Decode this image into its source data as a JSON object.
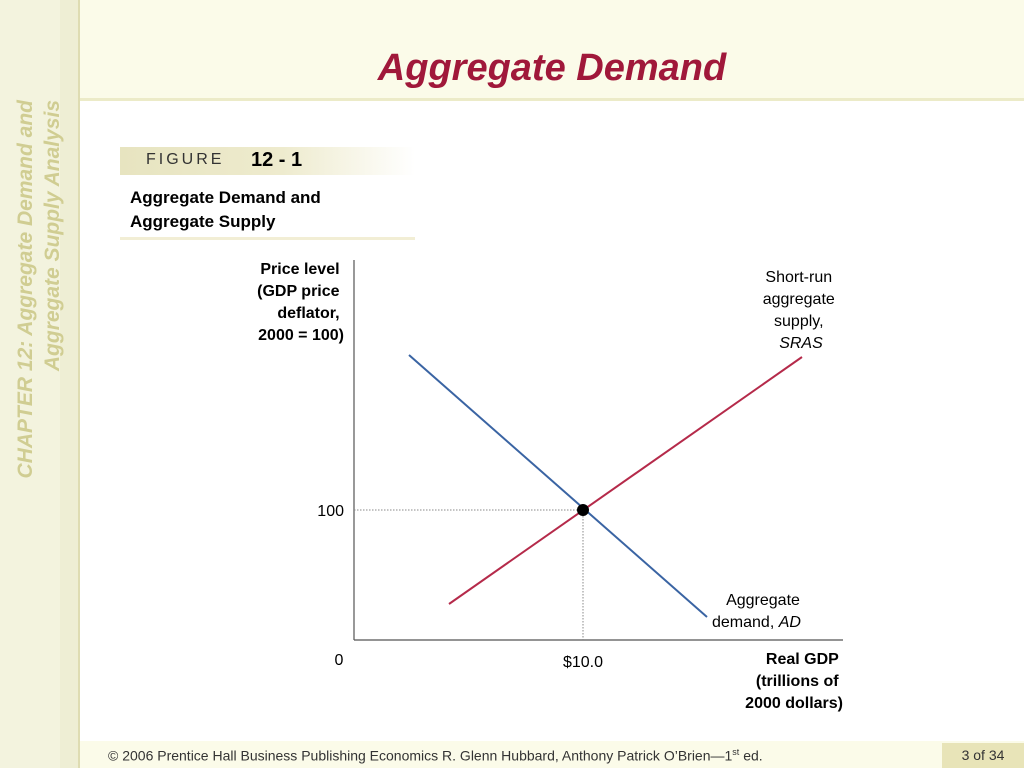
{
  "slide": {
    "title": "Aggregate Demand",
    "chapter_line1": "CHAPTER 12:  Aggregate Demand and",
    "chapter_line2": "Aggregate Supply Analysis"
  },
  "figure": {
    "label": "FIGURE",
    "number": "12 - 1",
    "caption_line1": "Aggregate Demand and",
    "caption_line2": "Aggregate Supply"
  },
  "chart_data": {
    "type": "line",
    "title": "Aggregate Demand and Aggregate Supply",
    "ylabel_lines": [
      "Price level",
      "(GDP price",
      "deflator,",
      "2000 = 100)"
    ],
    "xlabel_lines": [
      "Real GDP",
      "(trillions of",
      "2000 dollars)"
    ],
    "origin_label": "0",
    "x_tick_label": "$10.0",
    "y_tick_label": "100",
    "equilibrium": {
      "x": 10.0,
      "y": 100
    },
    "series": [
      {
        "name": "AD",
        "label_lines": [
          "Aggregate",
          "demand, "
        ],
        "label_italic": "AD",
        "color": "#3a64a3",
        "slope": "downward"
      },
      {
        "name": "SRAS",
        "label_lines": [
          "Short-run",
          "aggregate",
          "supply,"
        ],
        "label_italic": "SRAS",
        "color": "#b52a4a",
        "slope": "upward"
      }
    ],
    "grid": false,
    "guide_lines": "dotted lines from equilibrium to both axes"
  },
  "footer": {
    "text_before_sup": "© 2006 Prentice Hall Business Publishing   Economics  R. Glenn Hubbard, Anthony Patrick O’Brien—1",
    "sup": "st",
    "text_after_sup": " ed.",
    "page": "3 of 34"
  },
  "colors": {
    "title": "#a0183a",
    "band": "#fbfbe9",
    "sidebar_text": "#d0cd92",
    "ad_line": "#3a64a3",
    "sras_line": "#b52a4a"
  }
}
